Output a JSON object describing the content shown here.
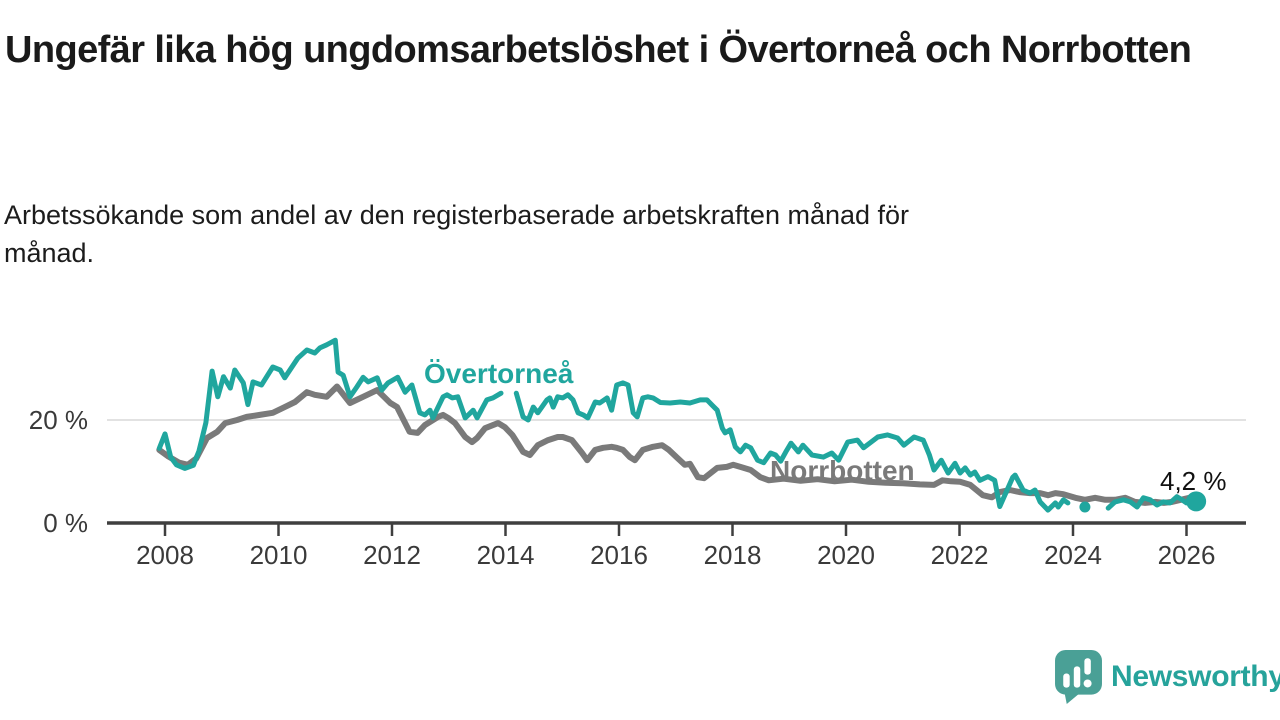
{
  "header": {
    "title": "Ungefär lika hög ungdomsarbetslöshet i Övertorneå och Norrbotten",
    "subtitle": "Arbetssökande som andel av den registerbaserade arbetskraften månad för månad.",
    "subtitle_line1": "Arbetssökande som andel av den registerbaserade arbetskraften månad för",
    "subtitle_line2": "månad."
  },
  "footer": {
    "brand": "Newsworthy"
  },
  "colors": {
    "overtornea": "#20a69e",
    "norrbotten": "#7a7a7a",
    "axis": "#3f3f3f",
    "grid": "#d8d8d8",
    "logo_bubble": "#4aa096",
    "logo_text": "#26a39b"
  },
  "chart_data": {
    "type": "line",
    "title": "Ungefär lika hög ungdomsarbetslöshet i Övertorneå och Norrbotten",
    "xlabel": "",
    "ylabel": "",
    "unit": "%",
    "xlim": [
      2007,
      2027
    ],
    "ylim": [
      0,
      37
    ],
    "grid": "single horizontal gridline at 20 %",
    "legend_position": "inline series labels",
    "x_ticks": [
      2008,
      2010,
      2012,
      2014,
      2016,
      2018,
      2020,
      2022,
      2024,
      2026
    ],
    "y_ticks": [
      {
        "value": 0,
        "label": "0 %"
      },
      {
        "value": 20,
        "label": "20 %"
      }
    ],
    "annotation": {
      "text": "4,2 %",
      "x": 2026.17,
      "y": 4.2
    },
    "series": [
      {
        "name": "Norrbotten",
        "color": "#7a7a7a",
        "width": 6,
        "points": [
          [
            2007.9,
            14.2
          ],
          [
            2008.05,
            13.0
          ],
          [
            2008.25,
            11.7
          ],
          [
            2008.4,
            11.3
          ],
          [
            2008.55,
            12.5
          ],
          [
            2008.74,
            16.5
          ],
          [
            2008.92,
            17.7
          ],
          [
            2009.06,
            19.4
          ],
          [
            2009.27,
            20.0
          ],
          [
            2009.44,
            20.6
          ],
          [
            2009.67,
            21.0
          ],
          [
            2009.9,
            21.4
          ],
          [
            2010.11,
            22.5
          ],
          [
            2010.29,
            23.5
          ],
          [
            2010.5,
            25.4
          ],
          [
            2010.64,
            24.9
          ],
          [
            2010.85,
            24.5
          ],
          [
            2011.03,
            26.5
          ],
          [
            2011.26,
            23.3
          ],
          [
            2011.49,
            24.5
          ],
          [
            2011.74,
            25.8
          ],
          [
            2011.97,
            23.3
          ],
          [
            2012.09,
            22.5
          ],
          [
            2012.31,
            17.7
          ],
          [
            2012.45,
            17.5
          ],
          [
            2012.58,
            19.0
          ],
          [
            2012.81,
            20.6
          ],
          [
            2012.9,
            21.0
          ],
          [
            2012.99,
            20.4
          ],
          [
            2013.11,
            19.4
          ],
          [
            2013.29,
            16.7
          ],
          [
            2013.41,
            15.7
          ],
          [
            2013.5,
            16.5
          ],
          [
            2013.64,
            18.4
          ],
          [
            2013.78,
            19.0
          ],
          [
            2013.87,
            19.4
          ],
          [
            2013.99,
            18.6
          ],
          [
            2014.12,
            17.1
          ],
          [
            2014.31,
            13.8
          ],
          [
            2014.43,
            13.2
          ],
          [
            2014.57,
            15.1
          ],
          [
            2014.75,
            16.1
          ],
          [
            2014.92,
            16.7
          ],
          [
            2015.01,
            16.7
          ],
          [
            2015.17,
            16.1
          ],
          [
            2015.35,
            13.6
          ],
          [
            2015.44,
            12.2
          ],
          [
            2015.58,
            14.2
          ],
          [
            2015.72,
            14.6
          ],
          [
            2015.87,
            14.8
          ],
          [
            2015.96,
            14.6
          ],
          [
            2016.07,
            14.2
          ],
          [
            2016.19,
            12.8
          ],
          [
            2016.28,
            12.2
          ],
          [
            2016.42,
            14.2
          ],
          [
            2016.6,
            14.8
          ],
          [
            2016.76,
            15.1
          ],
          [
            2016.88,
            14.2
          ],
          [
            2017.03,
            12.6
          ],
          [
            2017.16,
            11.3
          ],
          [
            2017.25,
            11.5
          ],
          [
            2017.39,
            8.9
          ],
          [
            2017.5,
            8.7
          ],
          [
            2017.73,
            10.7
          ],
          [
            2017.9,
            10.9
          ],
          [
            2018.01,
            11.3
          ],
          [
            2018.14,
            10.9
          ],
          [
            2018.32,
            10.3
          ],
          [
            2018.49,
            8.9
          ],
          [
            2018.64,
            8.3
          ],
          [
            2018.9,
            8.6
          ],
          [
            2019.2,
            8.2
          ],
          [
            2019.5,
            8.5
          ],
          [
            2019.8,
            8.1
          ],
          [
            2020.1,
            8.4
          ],
          [
            2020.4,
            8.0
          ],
          [
            2020.7,
            7.8
          ],
          [
            2021.0,
            7.7
          ],
          [
            2021.3,
            7.5
          ],
          [
            2021.55,
            7.4
          ],
          [
            2021.7,
            8.3
          ],
          [
            2021.85,
            8.1
          ],
          [
            2022.01,
            8.0
          ],
          [
            2022.19,
            7.4
          ],
          [
            2022.41,
            5.4
          ],
          [
            2022.57,
            5.0
          ],
          [
            2022.71,
            6.0
          ],
          [
            2022.89,
            6.4
          ],
          [
            2023.06,
            6.0
          ],
          [
            2023.24,
            5.8
          ],
          [
            2023.42,
            5.8
          ],
          [
            2023.56,
            5.4
          ],
          [
            2023.69,
            5.8
          ],
          [
            2023.83,
            5.6
          ],
          [
            2024.04,
            4.9
          ],
          [
            2024.21,
            4.5
          ],
          [
            2024.39,
            4.9
          ],
          [
            2024.57,
            4.5
          ],
          [
            2024.74,
            4.5
          ],
          [
            2024.92,
            4.9
          ],
          [
            2025.09,
            4.1
          ],
          [
            2025.27,
            3.9
          ],
          [
            2025.45,
            4.1
          ],
          [
            2025.6,
            3.9
          ],
          [
            2025.75,
            4.1
          ],
          [
            2025.9,
            4.5
          ],
          [
            2026.05,
            4.9
          ],
          [
            2026.17,
            5.0
          ]
        ],
        "markers": []
      },
      {
        "name": "Övertorneå",
        "color": "#20a69e",
        "width": 5,
        "points": [
          [
            2007.9,
            14.5
          ],
          [
            2008.0,
            17.3
          ],
          [
            2008.1,
            12.8
          ],
          [
            2008.2,
            11.3
          ],
          [
            2008.35,
            10.6
          ],
          [
            2008.5,
            11.2
          ],
          [
            2008.6,
            14.0
          ],
          [
            2008.72,
            19.5
          ],
          [
            2008.83,
            29.5
          ],
          [
            2008.93,
            24.5
          ],
          [
            2009.03,
            28.4
          ],
          [
            2009.15,
            26.2
          ],
          [
            2009.23,
            29.7
          ],
          [
            2009.38,
            27.2
          ],
          [
            2009.46,
            23.0
          ],
          [
            2009.55,
            27.4
          ],
          [
            2009.7,
            26.8
          ],
          [
            2009.9,
            30.3
          ],
          [
            2010.03,
            29.7
          ],
          [
            2010.11,
            28.2
          ],
          [
            2010.34,
            32.0
          ],
          [
            2010.5,
            33.6
          ],
          [
            2010.64,
            33.0
          ],
          [
            2010.73,
            34.0
          ],
          [
            2010.85,
            34.6
          ],
          [
            2011.0,
            35.5
          ],
          [
            2011.05,
            29.3
          ],
          [
            2011.14,
            28.7
          ],
          [
            2011.26,
            24.5
          ],
          [
            2011.38,
            26.4
          ],
          [
            2011.49,
            28.3
          ],
          [
            2011.58,
            27.4
          ],
          [
            2011.74,
            28.2
          ],
          [
            2011.82,
            25.8
          ],
          [
            2011.93,
            27.2
          ],
          [
            2012.1,
            28.3
          ],
          [
            2012.23,
            25.4
          ],
          [
            2012.35,
            26.8
          ],
          [
            2012.49,
            21.4
          ],
          [
            2012.58,
            21.0
          ],
          [
            2012.67,
            21.9
          ],
          [
            2012.72,
            20.4
          ],
          [
            2012.9,
            24.5
          ],
          [
            2012.97,
            24.9
          ],
          [
            2013.06,
            24.3
          ],
          [
            2013.16,
            24.5
          ],
          [
            2013.29,
            20.4
          ],
          [
            2013.43,
            21.9
          ],
          [
            2013.5,
            20.4
          ],
          [
            2013.67,
            23.9
          ],
          [
            2013.78,
            24.3
          ],
          [
            2013.92,
            25.2
          ],
          null,
          [
            2014.19,
            25.2
          ],
          [
            2014.31,
            20.6
          ],
          [
            2014.4,
            20.0
          ],
          [
            2014.49,
            22.5
          ],
          [
            2014.57,
            21.4
          ],
          [
            2014.73,
            23.9
          ],
          [
            2014.78,
            24.3
          ],
          [
            2014.84,
            22.5
          ],
          [
            2014.92,
            24.5
          ],
          [
            2015.01,
            24.3
          ],
          [
            2015.1,
            24.9
          ],
          [
            2015.19,
            23.9
          ],
          [
            2015.28,
            21.4
          ],
          [
            2015.37,
            21.0
          ],
          [
            2015.45,
            20.4
          ],
          [
            2015.58,
            23.5
          ],
          [
            2015.66,
            23.3
          ],
          [
            2015.79,
            24.3
          ],
          [
            2015.87,
            21.9
          ],
          [
            2015.96,
            26.8
          ],
          [
            2016.07,
            27.2
          ],
          [
            2016.16,
            26.8
          ],
          [
            2016.25,
            21.4
          ],
          [
            2016.32,
            20.6
          ],
          [
            2016.42,
            24.3
          ],
          [
            2016.51,
            24.5
          ],
          [
            2016.6,
            24.3
          ],
          [
            2016.73,
            23.4
          ],
          [
            2016.9,
            23.3
          ],
          [
            2017.08,
            23.5
          ],
          [
            2017.25,
            23.3
          ],
          [
            2017.43,
            23.9
          ],
          [
            2017.55,
            23.9
          ],
          [
            2017.64,
            22.9
          ],
          [
            2017.73,
            21.9
          ],
          [
            2017.82,
            18.4
          ],
          [
            2017.87,
            17.5
          ],
          [
            2017.96,
            18.1
          ],
          [
            2018.05,
            14.8
          ],
          [
            2018.14,
            13.8
          ],
          [
            2018.23,
            15.1
          ],
          [
            2018.32,
            14.6
          ],
          [
            2018.44,
            12.2
          ],
          [
            2018.55,
            11.7
          ],
          [
            2018.67,
            13.6
          ],
          [
            2018.76,
            13.2
          ],
          [
            2018.85,
            12.0
          ],
          [
            2018.94,
            13.8
          ],
          [
            2019.03,
            15.5
          ],
          [
            2019.16,
            13.8
          ],
          [
            2019.24,
            15.1
          ],
          [
            2019.4,
            13.2
          ],
          [
            2019.6,
            12.8
          ],
          [
            2019.75,
            13.6
          ],
          [
            2019.87,
            12.2
          ],
          [
            2020.03,
            15.7
          ],
          [
            2020.2,
            16.1
          ],
          [
            2020.31,
            14.6
          ],
          [
            2020.56,
            16.7
          ],
          [
            2020.73,
            17.1
          ],
          [
            2020.91,
            16.5
          ],
          [
            2021.02,
            15.1
          ],
          [
            2021.2,
            16.7
          ],
          [
            2021.36,
            16.1
          ],
          [
            2021.47,
            13.2
          ],
          [
            2021.55,
            10.3
          ],
          [
            2021.68,
            12.2
          ],
          [
            2021.8,
            9.7
          ],
          [
            2021.92,
            11.6
          ],
          [
            2022.01,
            9.7
          ],
          [
            2022.1,
            10.7
          ],
          [
            2022.19,
            9.3
          ],
          [
            2022.27,
            9.9
          ],
          [
            2022.36,
            8.3
          ],
          [
            2022.5,
            9.0
          ],
          [
            2022.62,
            8.3
          ],
          [
            2022.71,
            3.2
          ],
          [
            2022.94,
            8.9
          ],
          [
            2022.98,
            9.3
          ],
          [
            2023.12,
            6.4
          ],
          [
            2023.24,
            5.8
          ],
          [
            2023.33,
            6.4
          ],
          [
            2023.42,
            4.1
          ],
          [
            2023.56,
            2.5
          ],
          [
            2023.69,
            3.9
          ],
          [
            2023.74,
            3.1
          ],
          [
            2023.83,
            4.5
          ],
          [
            2023.91,
            3.9
          ],
          null,
          [
            2024.21,
            3.1
          ],
          null,
          [
            2024.62,
            2.9
          ],
          [
            2024.74,
            4.1
          ],
          [
            2024.89,
            4.5
          ],
          [
            2025.01,
            4.1
          ],
          [
            2025.13,
            3.1
          ],
          [
            2025.24,
            4.9
          ],
          [
            2025.36,
            4.5
          ],
          [
            2025.48,
            3.5
          ],
          [
            2025.59,
            4.1
          ],
          [
            2025.71,
            3.9
          ],
          [
            2025.83,
            5.1
          ],
          [
            2025.92,
            4.5
          ],
          [
            2026.0,
            3.9
          ],
          [
            2026.08,
            5.2
          ],
          [
            2026.17,
            4.2
          ]
        ],
        "markers": [
          {
            "x": 2024.21,
            "y": 3.1,
            "r": 5.5
          },
          {
            "x": 2026.17,
            "y": 4.2,
            "r": 10
          }
        ]
      }
    ]
  }
}
